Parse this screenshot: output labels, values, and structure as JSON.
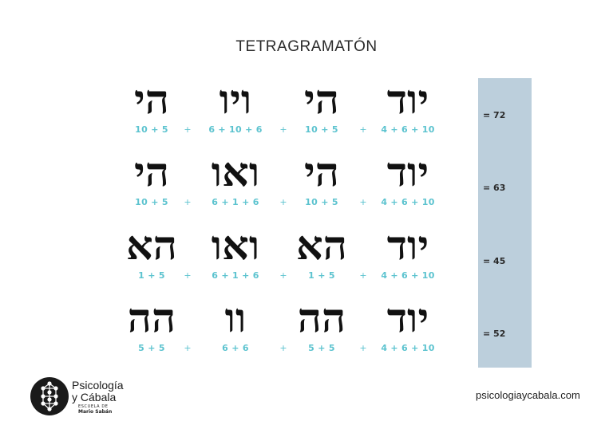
{
  "title": "TETRAGRAMATÓN",
  "rows": [
    {
      "cells": [
        {
          "hebrew": "הי",
          "calc": "10 + 5"
        },
        {
          "hebrew": "ויו",
          "calc": "6 + 10 + 6"
        },
        {
          "hebrew": "הי",
          "calc": "10 + 5"
        },
        {
          "hebrew": "יוד",
          "calc": "4 + 6 + 10"
        }
      ],
      "plus": "+",
      "sum": "= 72"
    },
    {
      "cells": [
        {
          "hebrew": "הי",
          "calc": "10 + 5"
        },
        {
          "hebrew": "ואו",
          "calc": "6 + 1 + 6"
        },
        {
          "hebrew": "הי",
          "calc": "10 + 5"
        },
        {
          "hebrew": "יוד",
          "calc": "4 + 6 + 10"
        }
      ],
      "plus": "+",
      "sum": "= 63"
    },
    {
      "cells": [
        {
          "hebrew": "הא",
          "calc": "1 + 5"
        },
        {
          "hebrew": "ואו",
          "calc": "6 + 1 + 6"
        },
        {
          "hebrew": "הא",
          "calc": "1 + 5"
        },
        {
          "hebrew": "יוד",
          "calc": "4 + 6 + 10"
        }
      ],
      "plus": "+",
      "sum": "= 45"
    },
    {
      "cells": [
        {
          "hebrew": "הה",
          "calc": "5 + 5"
        },
        {
          "hebrew": "וו",
          "calc": "6 + 6"
        },
        {
          "hebrew": "הה",
          "calc": "5 + 5"
        },
        {
          "hebrew": "יוד",
          "calc": "4 + 6 + 10"
        }
      ],
      "plus": "+",
      "sum": "= 52"
    }
  ],
  "logo": {
    "line1": "Psicología",
    "line2": "y Cábala",
    "sub1": "ESCUELA DE",
    "sub2": "Mario Sabán"
  },
  "website": "psicologiaycabala.com",
  "colors": {
    "accent_teal": "#5cc3cf",
    "panel_blue": "#bccfdc",
    "ink": "#111111"
  }
}
